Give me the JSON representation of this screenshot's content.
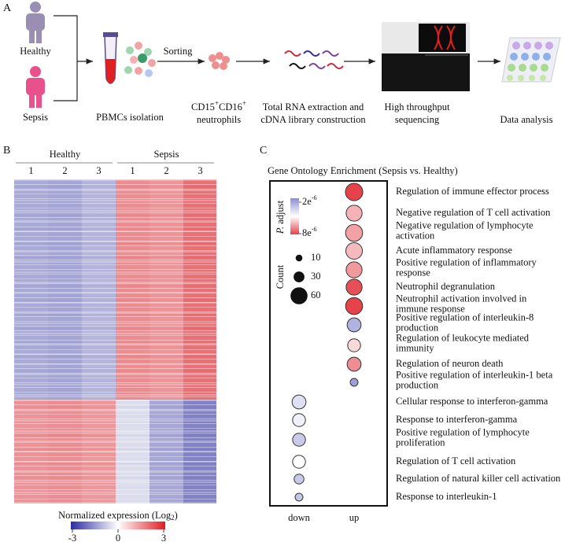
{
  "panel_a": {
    "label": "A",
    "groups": [
      "Healthy",
      "Sepsis"
    ],
    "sorting": "Sorting",
    "pbmc": "PBMCs isolation",
    "neutrophils": {
      "parts": [
        "CD15",
        "+",
        "CD16",
        "+"
      ],
      "line2": "neutrophils"
    },
    "rna": [
      "Total RNA extraction and",
      "cDNA library construction"
    ],
    "sequencing": [
      "High throughput",
      "sequencing"
    ],
    "analysis": "Data analysis"
  },
  "panel_b": {
    "label": "B",
    "groups": [
      {
        "name": "Healthy",
        "samples": [
          "1",
          "2",
          "3"
        ]
      },
      {
        "name": "Sepsis",
        "samples": [
          "1",
          "2",
          "3"
        ]
      }
    ],
    "colorbar": {
      "title": [
        "Normalized expression (Log",
        "2",
        ")"
      ],
      "ticks": [
        -3,
        0,
        3
      ]
    }
  },
  "panel_c": {
    "label": "C",
    "title": "Gene Ontology Enrichment (Sepsis vs. Healthy)",
    "columns": [
      "down",
      "up"
    ],
    "legend": {
      "p_title": [
        "P.",
        "adjust"
      ],
      "p_ticks": [
        {
          "value": 2e-06,
          "base": "2e",
          "exp": "-6"
        },
        {
          "value": 8e-06,
          "base": "8e",
          "exp": "-6"
        }
      ],
      "count_title": "Count",
      "count_ticks": [
        10,
        30,
        60
      ]
    },
    "terms": [
      {
        "lines": [
          "Regulation of immune effector process"
        ],
        "column": 1,
        "count": 62,
        "p_adjust": 8e-06
      },
      {
        "lines": [
          "Negative regulation of T cell activation"
        ],
        "column": 1,
        "count": 55,
        "p_adjust": 6.2e-06
      },
      {
        "lines": [
          "Negative regulation of lymphocyte",
          "activation"
        ],
        "column": 1,
        "count": 60,
        "p_adjust": 6.5e-06
      },
      {
        "lines": [
          "Acute inflammatory response"
        ],
        "column": 1,
        "count": 58,
        "p_adjust": 6.1e-06
      },
      {
        "lines": [
          "Positive regulation of inflammatory",
          "response"
        ],
        "column": 1,
        "count": 55,
        "p_adjust": 6.6e-06
      },
      {
        "lines": [
          "Neutrophil degranulation"
        ],
        "column": 1,
        "count": 55,
        "p_adjust": 7.8e-06
      },
      {
        "lines": [
          "Neutrophil activation involved in",
          "immune response"
        ],
        "column": 1,
        "count": 60,
        "p_adjust": 8e-06
      },
      {
        "lines": [
          "Positive regulation of interleukin-8",
          "production"
        ],
        "column": 1,
        "count": 45,
        "p_adjust": 3e-06
      },
      {
        "lines": [
          "Regulation of leukocyte mediated",
          "immunity"
        ],
        "column": 1,
        "count": 40,
        "p_adjust": 5.6e-06
      },
      {
        "lines": [
          "Regulation of neuron death"
        ],
        "column": 1,
        "count": 45,
        "p_adjust": 6.8e-06
      },
      {
        "lines": [
          "Positive regulation of interleukin-1 beta",
          "production"
        ],
        "column": 1,
        "count": 15,
        "p_adjust": 2.5e-06
      },
      {
        "lines": [
          "Cellular response to interferon-gamma"
        ],
        "column": 0,
        "count": 45,
        "p_adjust": 4.2e-06
      },
      {
        "lines": [
          "Response to interferon-gamma"
        ],
        "column": 0,
        "count": 40,
        "p_adjust": 4.6e-06
      },
      {
        "lines": [
          "Positive regulation of lymphocyte",
          "proliferation"
        ],
        "column": 0,
        "count": 40,
        "p_adjust": 3.6e-06
      },
      {
        "lines": [
          "Regulation of T cell activation"
        ],
        "column": 0,
        "count": 40,
        "p_adjust": 5e-06
      },
      {
        "lines": [
          "Regulation of natural killer cell activation"
        ],
        "column": 0,
        "count": 25,
        "p_adjust": 3.6e-06
      },
      {
        "lines": [
          "Response to interleukin-1"
        ],
        "column": 0,
        "count": 15,
        "p_adjust": 3.5e-06
      }
    ]
  }
}
